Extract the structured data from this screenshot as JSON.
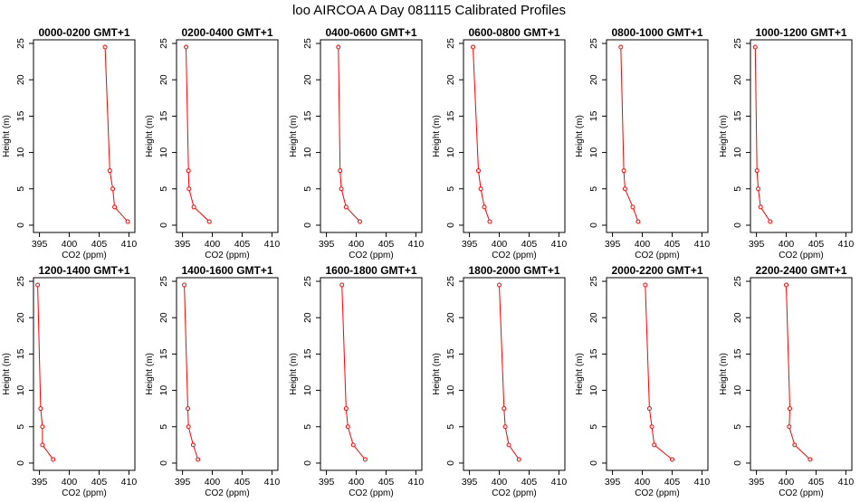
{
  "title": "loo AIRCOA A  Day 081115  Calibrated Profiles",
  "colors": {
    "series": "#ff0000",
    "axis": "#000000",
    "background": "#ffffff"
  },
  "chart_data": {
    "type": "line",
    "layout": {
      "rows": 2,
      "cols": 6
    },
    "xlabel": "CO2 (ppm)",
    "ylabel": "Height (m)",
    "xlim": [
      394,
      411
    ],
    "ylim": [
      -1,
      25.5
    ],
    "xticks": [
      395,
      400,
      405,
      410
    ],
    "yticks": [
      0,
      5,
      10,
      15,
      20,
      25
    ],
    "heights": [
      24.5,
      7.5,
      5,
      2.5,
      0.5
    ],
    "panels": [
      {
        "title": "0000-0200 GMT+1",
        "co2": [
          406.0,
          406.8,
          407.3,
          407.6,
          409.8
        ]
      },
      {
        "title": "0200-0400 GMT+1",
        "co2": [
          395.6,
          396.0,
          396.1,
          396.9,
          399.5
        ]
      },
      {
        "title": "0400-0600 GMT+1",
        "co2": [
          397.0,
          397.3,
          397.5,
          398.3,
          400.6
        ]
      },
      {
        "title": "0600-0800 GMT+1",
        "co2": [
          395.6,
          396.5,
          396.9,
          397.5,
          398.4
        ]
      },
      {
        "title": "0800-1000 GMT+1",
        "co2": [
          396.4,
          396.9,
          397.1,
          398.4,
          399.3
        ]
      },
      {
        "title": "1000-1200 GMT+1",
        "co2": [
          394.8,
          395.1,
          395.3,
          395.7,
          397.3
        ]
      },
      {
        "title": "1200-1400 GMT+1",
        "co2": [
          394.7,
          395.2,
          395.5,
          395.5,
          397.3
        ]
      },
      {
        "title": "1400-1600 GMT+1",
        "co2": [
          395.3,
          395.9,
          396.0,
          396.8,
          397.6
        ]
      },
      {
        "title": "1600-1800 GMT+1",
        "co2": [
          397.6,
          398.3,
          398.6,
          399.5,
          401.5
        ]
      },
      {
        "title": "1800-2000 GMT+1",
        "co2": [
          400.0,
          400.8,
          401.0,
          401.6,
          403.3
        ]
      },
      {
        "title": "2000-2200 GMT+1",
        "co2": [
          400.5,
          401.2,
          401.6,
          402.0,
          405.0
        ]
      },
      {
        "title": "2200-2400 GMT+1",
        "co2": [
          400.0,
          400.6,
          400.5,
          401.4,
          404.0
        ]
      }
    ]
  }
}
